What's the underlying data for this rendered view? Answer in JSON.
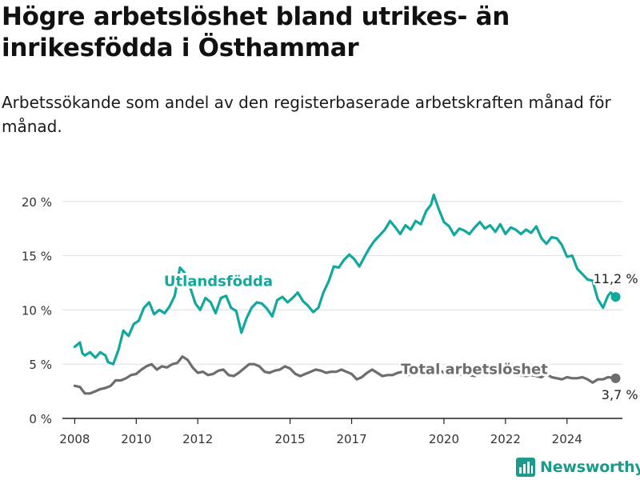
{
  "title": "Högre arbetslöshet bland utrikes- än inrikesfödda i Östhammar",
  "subtitle": "Arbetssökande som andel av den registerbaserade arbetskraften månad för månad.",
  "brand": "Newsworthy",
  "colors": {
    "foreign": "#13a89e",
    "total": "#6d6d6d",
    "grid": "#e4e4e4",
    "axis": "#222222",
    "brand": "#1c9a8c"
  },
  "chart_data": {
    "type": "line",
    "title": "Högre arbetslöshet bland utrikes- än inrikesfödda i Östhammar",
    "xlabel": "",
    "ylabel": "",
    "x_ticks": [
      2008,
      2010,
      2012,
      2015,
      2017,
      2020,
      2022,
      2024
    ],
    "xlim": [
      2007.6,
      2025.8
    ],
    "y_ticks": [
      0,
      5,
      10,
      15,
      20
    ],
    "y_tick_labels": [
      "0 %",
      "5 %",
      "10 %",
      "15 %",
      "20 %"
    ],
    "ylim": [
      0,
      20.5
    ],
    "grid": true,
    "legend": "inline labels",
    "series": [
      {
        "name": "Utlandsfödda",
        "label_position": [
          2010.9,
          12.2
        ],
        "end_label": "11,2 %",
        "points": [
          [
            2008.0,
            6.6
          ],
          [
            2008.17,
            7.0
          ],
          [
            2008.25,
            6.0
          ],
          [
            2008.33,
            5.8
          ],
          [
            2008.5,
            6.1
          ],
          [
            2008.67,
            5.6
          ],
          [
            2008.83,
            6.1
          ],
          [
            2009.0,
            5.8
          ],
          [
            2009.08,
            5.2
          ],
          [
            2009.25,
            5.0
          ],
          [
            2009.42,
            6.3
          ],
          [
            2009.58,
            8.1
          ],
          [
            2009.75,
            7.6
          ],
          [
            2009.92,
            8.7
          ],
          [
            2010.08,
            9.0
          ],
          [
            2010.25,
            10.2
          ],
          [
            2010.42,
            10.7
          ],
          [
            2010.58,
            9.6
          ],
          [
            2010.75,
            10.0
          ],
          [
            2010.92,
            9.7
          ],
          [
            2011.08,
            10.3
          ],
          [
            2011.25,
            11.3
          ],
          [
            2011.42,
            13.9
          ],
          [
            2011.58,
            13.4
          ],
          [
            2011.75,
            12.1
          ],
          [
            2011.92,
            10.6
          ],
          [
            2012.08,
            10.0
          ],
          [
            2012.25,
            11.1
          ],
          [
            2012.42,
            10.7
          ],
          [
            2012.58,
            9.7
          ],
          [
            2012.75,
            11.1
          ],
          [
            2012.92,
            11.3
          ],
          [
            2013.08,
            10.2
          ],
          [
            2013.25,
            9.9
          ],
          [
            2013.42,
            7.9
          ],
          [
            2013.58,
            9.2
          ],
          [
            2013.75,
            10.2
          ],
          [
            2013.92,
            10.7
          ],
          [
            2014.08,
            10.6
          ],
          [
            2014.25,
            10.1
          ],
          [
            2014.42,
            9.4
          ],
          [
            2014.58,
            10.9
          ],
          [
            2014.75,
            11.2
          ],
          [
            2014.92,
            10.7
          ],
          [
            2015.08,
            11.1
          ],
          [
            2015.25,
            11.6
          ],
          [
            2015.42,
            10.8
          ],
          [
            2015.58,
            10.4
          ],
          [
            2015.75,
            9.8
          ],
          [
            2015.92,
            10.2
          ],
          [
            2016.08,
            11.6
          ],
          [
            2016.25,
            12.6
          ],
          [
            2016.42,
            14.0
          ],
          [
            2016.58,
            13.9
          ],
          [
            2016.75,
            14.6
          ],
          [
            2016.92,
            15.1
          ],
          [
            2017.08,
            14.7
          ],
          [
            2017.25,
            14.0
          ],
          [
            2017.42,
            14.9
          ],
          [
            2017.58,
            15.7
          ],
          [
            2017.75,
            16.4
          ],
          [
            2017.92,
            16.9
          ],
          [
            2018.08,
            17.4
          ],
          [
            2018.25,
            18.2
          ],
          [
            2018.42,
            17.6
          ],
          [
            2018.58,
            17.0
          ],
          [
            2018.75,
            17.8
          ],
          [
            2018.92,
            17.4
          ],
          [
            2019.08,
            18.2
          ],
          [
            2019.25,
            17.9
          ],
          [
            2019.42,
            19.1
          ],
          [
            2019.58,
            19.7
          ],
          [
            2019.67,
            20.6
          ],
          [
            2019.83,
            19.3
          ],
          [
            2020.0,
            18.1
          ],
          [
            2020.17,
            17.7
          ],
          [
            2020.33,
            16.9
          ],
          [
            2020.5,
            17.5
          ],
          [
            2020.67,
            17.3
          ],
          [
            2020.83,
            17.0
          ],
          [
            2021.0,
            17.6
          ],
          [
            2021.17,
            18.1
          ],
          [
            2021.33,
            17.5
          ],
          [
            2021.5,
            17.8
          ],
          [
            2021.67,
            17.2
          ],
          [
            2021.83,
            17.9
          ],
          [
            2022.0,
            17.0
          ],
          [
            2022.17,
            17.6
          ],
          [
            2022.33,
            17.4
          ],
          [
            2022.5,
            17.0
          ],
          [
            2022.67,
            17.4
          ],
          [
            2022.83,
            17.1
          ],
          [
            2023.0,
            17.7
          ],
          [
            2023.17,
            16.6
          ],
          [
            2023.33,
            16.1
          ],
          [
            2023.5,
            16.7
          ],
          [
            2023.67,
            16.6
          ],
          [
            2023.83,
            16.0
          ],
          [
            2024.0,
            14.9
          ],
          [
            2024.17,
            15.0
          ],
          [
            2024.33,
            13.8
          ],
          [
            2024.5,
            13.3
          ],
          [
            2024.67,
            12.8
          ],
          [
            2024.83,
            12.7
          ],
          [
            2025.0,
            11.0
          ],
          [
            2025.17,
            10.2
          ],
          [
            2025.33,
            11.3
          ],
          [
            2025.42,
            11.6
          ],
          [
            2025.58,
            11.2
          ]
        ]
      },
      {
        "name": "Total arbetslöshet",
        "label_position": [
          2018.6,
          4.1
        ],
        "end_label": "3,7 %",
        "points": [
          [
            2008.0,
            3.0
          ],
          [
            2008.17,
            2.9
          ],
          [
            2008.33,
            2.3
          ],
          [
            2008.5,
            2.3
          ],
          [
            2008.67,
            2.5
          ],
          [
            2008.83,
            2.7
          ],
          [
            2009.0,
            2.8
          ],
          [
            2009.17,
            3.0
          ],
          [
            2009.33,
            3.5
          ],
          [
            2009.5,
            3.5
          ],
          [
            2009.67,
            3.7
          ],
          [
            2009.83,
            4.0
          ],
          [
            2010.0,
            4.1
          ],
          [
            2010.17,
            4.5
          ],
          [
            2010.33,
            4.8
          ],
          [
            2010.5,
            5.0
          ],
          [
            2010.67,
            4.5
          ],
          [
            2010.83,
            4.8
          ],
          [
            2011.0,
            4.7
          ],
          [
            2011.17,
            5.0
          ],
          [
            2011.33,
            5.1
          ],
          [
            2011.5,
            5.7
          ],
          [
            2011.67,
            5.4
          ],
          [
            2011.83,
            4.7
          ],
          [
            2012.0,
            4.2
          ],
          [
            2012.17,
            4.3
          ],
          [
            2012.33,
            4.0
          ],
          [
            2012.5,
            4.1
          ],
          [
            2012.67,
            4.4
          ],
          [
            2012.83,
            4.5
          ],
          [
            2013.0,
            4.0
          ],
          [
            2013.17,
            3.9
          ],
          [
            2013.33,
            4.2
          ],
          [
            2013.5,
            4.6
          ],
          [
            2013.67,
            5.0
          ],
          [
            2013.83,
            5.0
          ],
          [
            2014.0,
            4.8
          ],
          [
            2014.17,
            4.3
          ],
          [
            2014.33,
            4.2
          ],
          [
            2014.5,
            4.4
          ],
          [
            2014.67,
            4.5
          ],
          [
            2014.83,
            4.8
          ],
          [
            2015.0,
            4.6
          ],
          [
            2015.17,
            4.1
          ],
          [
            2015.33,
            3.9
          ],
          [
            2015.5,
            4.1
          ],
          [
            2015.67,
            4.3
          ],
          [
            2015.83,
            4.5
          ],
          [
            2016.0,
            4.4
          ],
          [
            2016.17,
            4.2
          ],
          [
            2016.33,
            4.3
          ],
          [
            2016.5,
            4.3
          ],
          [
            2016.67,
            4.5
          ],
          [
            2016.83,
            4.3
          ],
          [
            2017.0,
            4.1
          ],
          [
            2017.17,
            3.6
          ],
          [
            2017.33,
            3.8
          ],
          [
            2017.5,
            4.2
          ],
          [
            2017.67,
            4.5
          ],
          [
            2017.83,
            4.2
          ],
          [
            2018.0,
            3.9
          ],
          [
            2018.17,
            4.0
          ],
          [
            2018.33,
            4.0
          ],
          [
            2018.5,
            4.2
          ],
          [
            2018.67,
            4.3
          ],
          [
            2018.83,
            4.0
          ],
          [
            2019.0,
            4.1
          ],
          [
            2019.17,
            4.5
          ],
          [
            2019.33,
            4.3
          ],
          [
            2019.5,
            4.3
          ],
          [
            2019.67,
            4.4
          ],
          [
            2019.83,
            4.5
          ],
          [
            2020.0,
            4.2
          ],
          [
            2020.17,
            4.4
          ],
          [
            2020.33,
            4.1
          ],
          [
            2020.5,
            4.0
          ],
          [
            2020.67,
            4.2
          ],
          [
            2020.83,
            4.0
          ],
          [
            2021.0,
            3.9
          ],
          [
            2021.17,
            4.2
          ],
          [
            2021.33,
            4.0
          ],
          [
            2021.5,
            4.1
          ],
          [
            2021.67,
            4.3
          ],
          [
            2021.83,
            4.0
          ],
          [
            2022.0,
            4.2
          ],
          [
            2022.17,
            4.3
          ],
          [
            2022.33,
            4.0
          ],
          [
            2022.5,
            4.0
          ],
          [
            2022.67,
            3.9
          ],
          [
            2022.83,
            4.0
          ],
          [
            2023.0,
            3.9
          ],
          [
            2023.17,
            3.8
          ],
          [
            2023.33,
            4.1
          ],
          [
            2023.5,
            3.8
          ],
          [
            2023.67,
            3.7
          ],
          [
            2023.83,
            3.6
          ],
          [
            2024.0,
            3.8
          ],
          [
            2024.17,
            3.7
          ],
          [
            2024.33,
            3.7
          ],
          [
            2024.5,
            3.8
          ],
          [
            2024.67,
            3.6
          ],
          [
            2024.83,
            3.3
          ],
          [
            2025.0,
            3.6
          ],
          [
            2025.17,
            3.6
          ],
          [
            2025.33,
            3.8
          ],
          [
            2025.58,
            3.7
          ]
        ]
      }
    ]
  }
}
